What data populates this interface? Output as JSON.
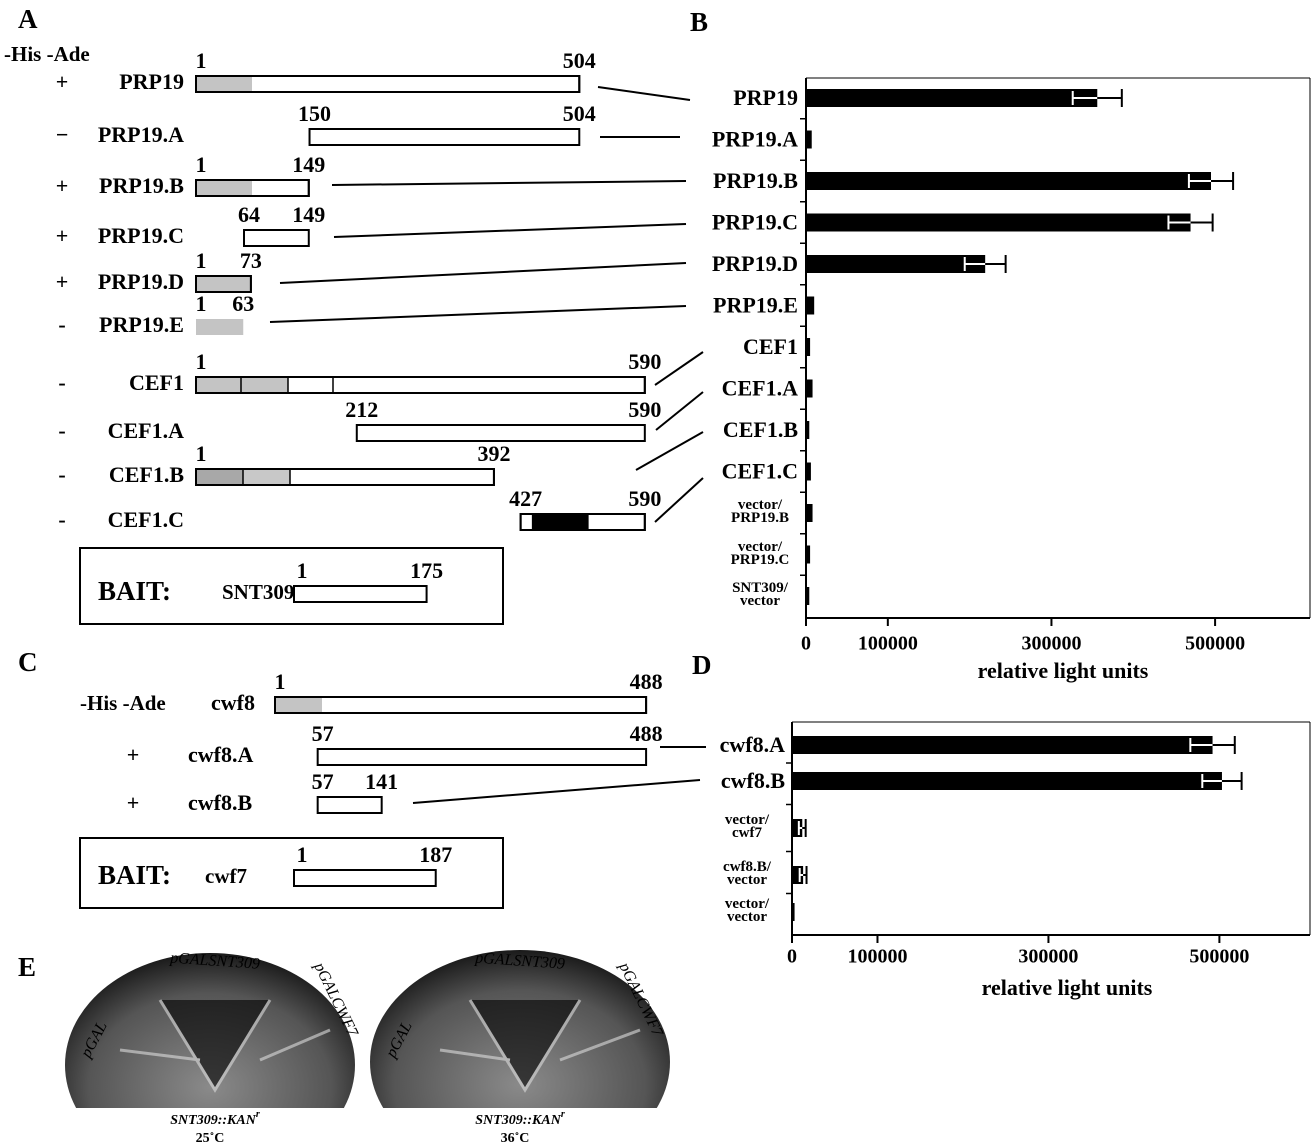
{
  "panel_labels": [
    "A",
    "B",
    "C",
    "D",
    "E"
  ],
  "panel_a": {
    "header": "-His -Ade",
    "rows": [
      {
        "sign": "+",
        "name": "PRP19",
        "start": 1,
        "end": 504
      },
      {
        "sign": "−",
        "name": "PRP19.A",
        "start": 150,
        "end": 504
      },
      {
        "sign": "+",
        "name": "PRP19.B",
        "start": 1,
        "end": 149
      },
      {
        "sign": "+",
        "name": "PRP19.C",
        "start": 64,
        "end": 149
      },
      {
        "sign": "+",
        "name": "PRP19.D",
        "start": 1,
        "end": 73
      },
      {
        "sign": "-",
        "name": "PRP19.E",
        "start": 1,
        "end": 63
      },
      {
        "sign": "-",
        "name": "CEF1",
        "start": 1,
        "end": 590
      },
      {
        "sign": "-",
        "name": "CEF1.A",
        "start": 212,
        "end": 590
      },
      {
        "sign": "-",
        "name": "CEF1.B",
        "start": 1,
        "end": 392
      },
      {
        "sign": "-",
        "name": "CEF1.C",
        "start": 427,
        "end": 590
      }
    ],
    "bait": {
      "label": "BAIT:",
      "name": "SNT309",
      "start": 1,
      "end": 175
    }
  },
  "panel_c": {
    "header": "-His -Ade",
    "rows": [
      {
        "name": "cwf8",
        "start": 1,
        "end": 488
      },
      {
        "sign": "+",
        "name": "cwf8.A",
        "start": 57,
        "end": 488
      },
      {
        "sign": "+",
        "name": "cwf8.B",
        "start": 57,
        "end": 141
      }
    ],
    "bait": {
      "label": "BAIT:",
      "name": "cwf7",
      "start": 1,
      "end": 187
    }
  },
  "panel_e": {
    "plates": [
      {
        "labels": [
          "pGAL",
          "pGALSNT309",
          "pGALCWF7"
        ],
        "strain": "SNT309::KAN",
        "strain_sup": "r",
        "temperature": "25˚C"
      },
      {
        "labels": [
          "pGAL",
          "pGALSNT309",
          "pGALCWF7"
        ],
        "strain": "SNT309::KAN",
        "strain_sup": "r",
        "temperature": "36˚C"
      }
    ]
  },
  "chart_data": [
    {
      "type": "bar",
      "color": "#000000",
      "categories": [
        "PRP19",
        "PRP19.A",
        "PRP19.B",
        "PRP19.C",
        "PRP19.D",
        "PRP19.E",
        "CEF1",
        "CEF1.A",
        "CEF1.B",
        "CEF1.C",
        "vector/\nPRP19.B",
        "vector/\nPRP19.C",
        "SNT309/\nvector"
      ],
      "values": [
        356000,
        7000,
        495000,
        470000,
        219000,
        10000,
        5000,
        8000,
        4000,
        6000,
        8000,
        5000,
        4000
      ],
      "errors": [
        30000,
        null,
        27000,
        27000,
        25000,
        null,
        null,
        null,
        null,
        null,
        null,
        null,
        null
      ],
      "xlim": [
        0,
        616000
      ],
      "xticks": [
        0,
        100000,
        300000,
        500000
      ],
      "xlabel": "relative light units"
    },
    {
      "type": "bar",
      "color": "#000000",
      "categories": [
        "cwf8.A",
        "cwf8.B",
        "vector/\ncwf7",
        "cwf8.B/\nvector",
        "vector/\nvector"
      ],
      "values": [
        492000,
        503000,
        12000,
        13000,
        3000
      ],
      "errors": [
        26000,
        23000,
        4000,
        4000,
        null
      ],
      "xlim": [
        0,
        606000
      ],
      "xticks": [
        0,
        100000,
        300000,
        500000
      ],
      "xlabel": "relative light units"
    }
  ]
}
